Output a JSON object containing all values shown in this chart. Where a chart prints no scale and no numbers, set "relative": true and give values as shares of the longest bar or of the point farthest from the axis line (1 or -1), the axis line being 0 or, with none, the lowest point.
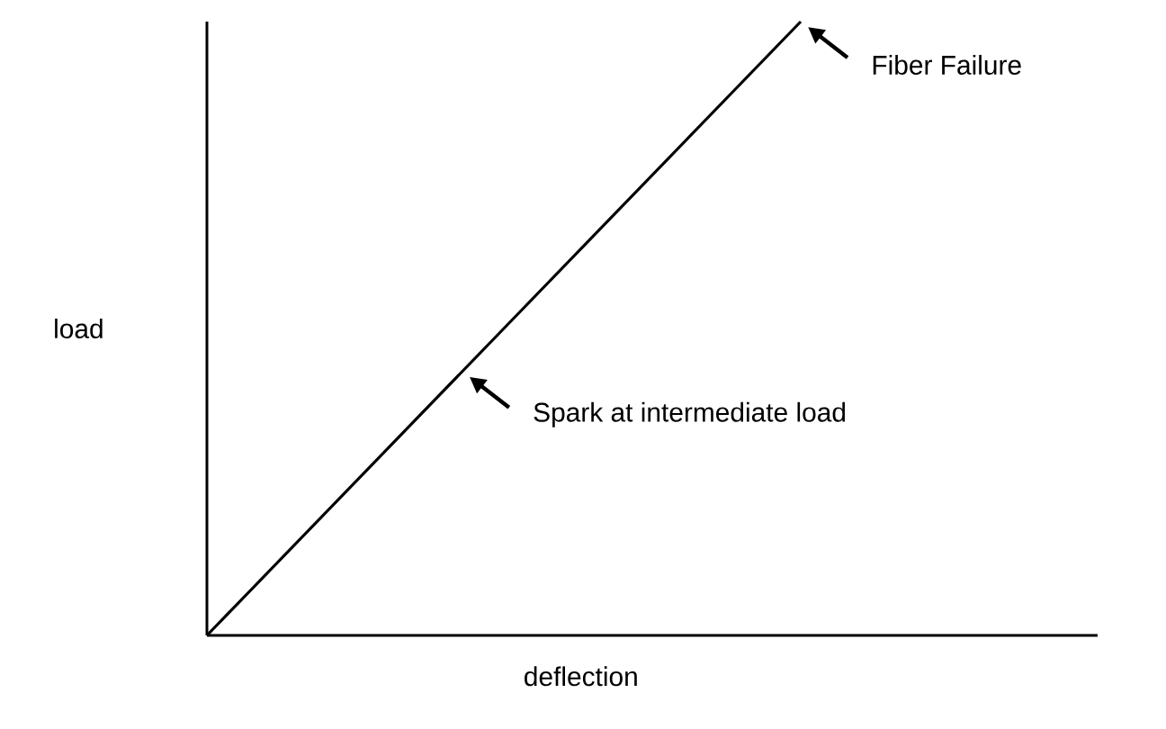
{
  "chart_data": {
    "type": "line",
    "relative": true,
    "xlabel": "deflection",
    "ylabel": "load",
    "categories": [
      null,
      null,
      null,
      null
    ],
    "values": [
      0,
      0.5,
      1,
      null
    ],
    "color": "#000000",
    "annotations": [
      "Fiber Failure",
      "Spark at intermediate load"
    ]
  }
}
